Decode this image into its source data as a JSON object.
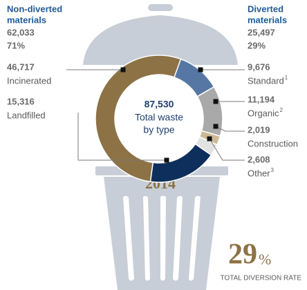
{
  "chart_data": {
    "type": "donut",
    "left_group": {
      "title": [
        "Non-diverted",
        "materials"
      ],
      "value": "62,033",
      "percent": "71%"
    },
    "right_group": {
      "title": [
        "Diverted",
        "materials"
      ],
      "value": "25,497",
      "percent": "29%"
    },
    "categories": [
      "Standard",
      "Organic",
      "Construction",
      "Other",
      "Landfilled",
      "Incinerated"
    ],
    "notes": [
      "1",
      "2",
      null,
      "3",
      null,
      null
    ],
    "values": [
      9676,
      11194,
      2019,
      2608,
      15316,
      46717
    ],
    "value_labels": [
      "9,676",
      "11,194",
      "2,019",
      "2,608",
      "15,316",
      "46,717"
    ],
    "colors": [
      "#5677a4",
      "#a9a9a9",
      "#cdb995",
      "#e2e2e2",
      "#0e2f5c",
      "#8c7245"
    ],
    "center_value": "87,530",
    "center_label": [
      "Total waste",
      "by type"
    ],
    "year": "2014",
    "rate_number": "29",
    "rate_unit": "%",
    "rate_label": "TOTAL DIVERSION RATE"
  }
}
